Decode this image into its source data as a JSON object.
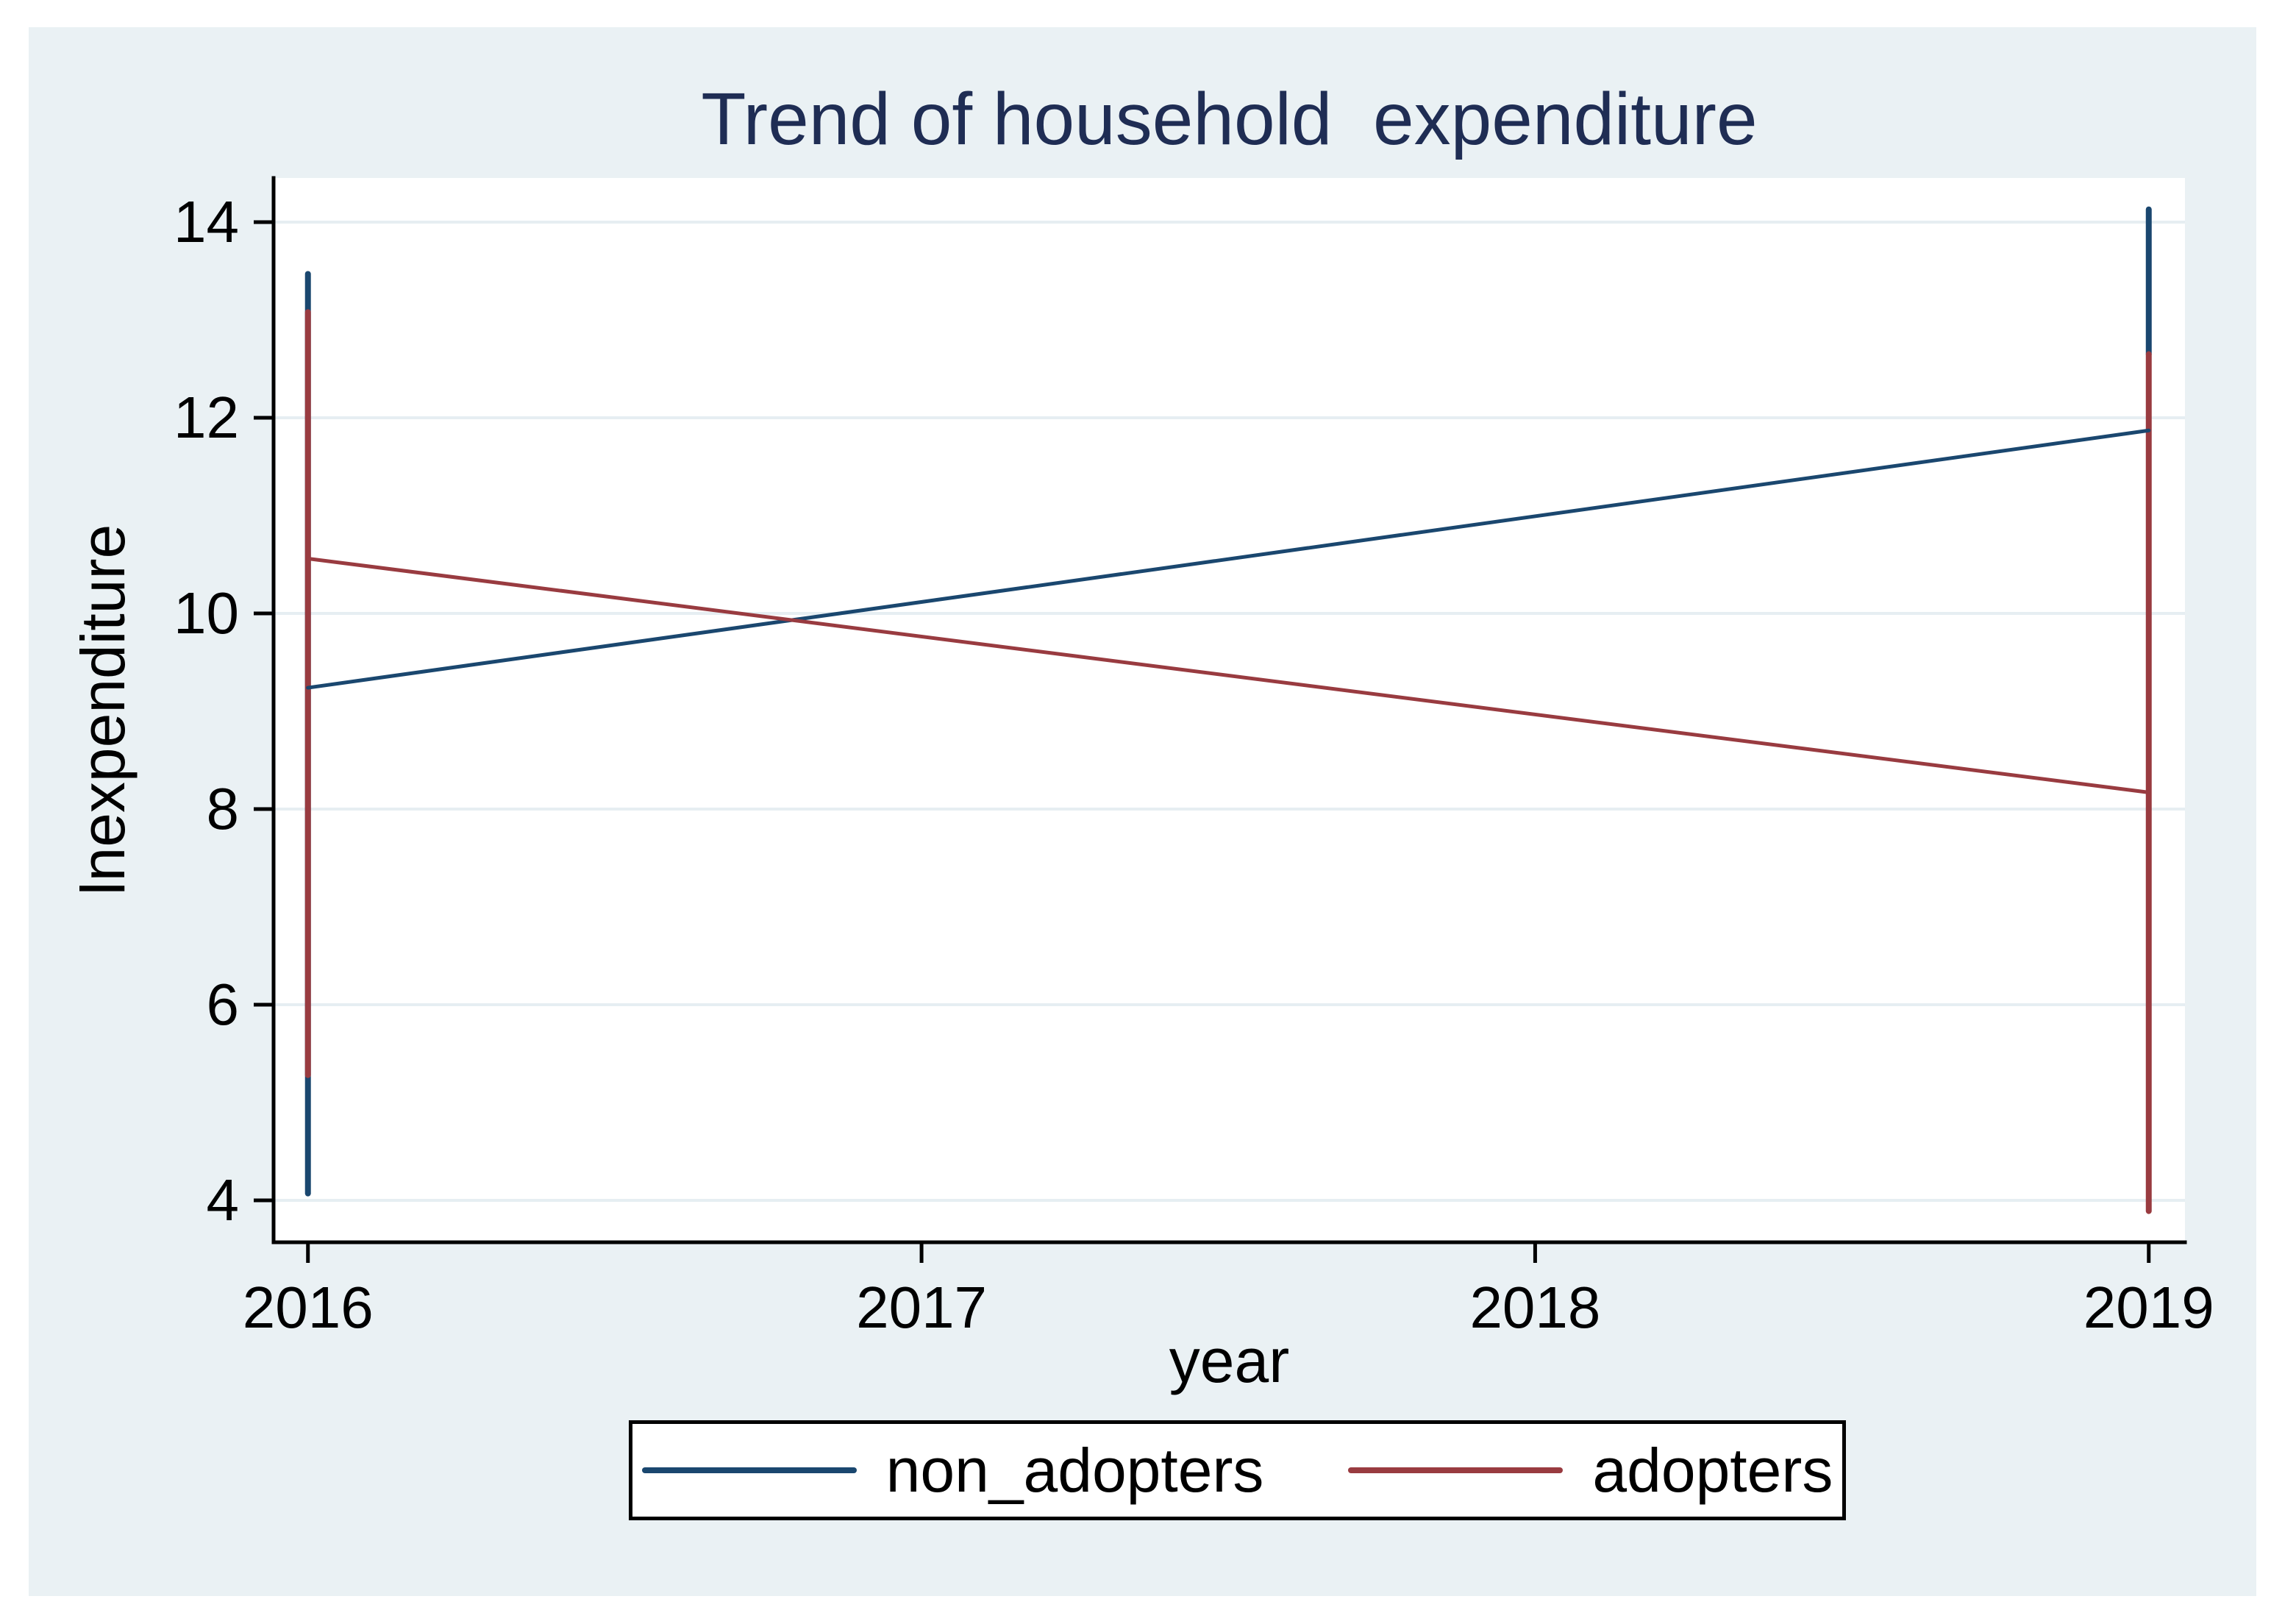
{
  "title": "Trend of household  expenditure",
  "colors": {
    "page_background": "#ffffff",
    "graph_background": "#eaf1f4",
    "plot_background": "#ffffff",
    "gridline": "#e6eef2",
    "axis": "#000000",
    "title_text": "#1f2d54",
    "tick_text": "#000000",
    "navy": "#1a476f",
    "maroon": "#993b40",
    "legend_border": "#000000",
    "legend_background": "#ffffff"
  },
  "chart_data": {
    "type": "line",
    "title": "Trend of household  expenditure",
    "xlabel": "year",
    "ylabel": "lnexpenditure",
    "xlim": [
      2015.944,
      2019.059
    ],
    "ylim": [
      3.571,
      14.451
    ],
    "xticks": [
      2016,
      2017,
      2018,
      2019
    ],
    "yticks": [
      4,
      6,
      8,
      10,
      12,
      14
    ],
    "grid": "horizontal",
    "legend_position": "bottom",
    "series": [
      {
        "name": "non_adopters",
        "color": "#1a476f",
        "x": [
          2016,
          2019
        ],
        "y": [
          9.24,
          11.87
        ]
      },
      {
        "name": "adopters",
        "color": "#993b40",
        "x": [
          2016,
          2019
        ],
        "y": [
          10.56,
          8.17
        ]
      }
    ],
    "range_spikes": [
      {
        "series": "non_adopters",
        "color": "#1a476f",
        "x": 2016,
        "y_min": 4.07,
        "y_max": 13.47
      },
      {
        "series": "non_adopters",
        "color": "#1a476f",
        "x": 2019,
        "y_min": 12.65,
        "y_max": 14.13
      },
      {
        "series": "adopters",
        "color": "#993b40",
        "x": 2016,
        "y_min": 5.28,
        "y_max": 13.08
      },
      {
        "series": "adopters",
        "color": "#993b40",
        "x": 2019,
        "y_min": 3.89,
        "y_max": 12.65
      }
    ]
  },
  "legend": {
    "items": [
      {
        "label": "non_adopters",
        "color": "#1a476f"
      },
      {
        "label": "adopters",
        "color": "#993b40"
      }
    ]
  }
}
